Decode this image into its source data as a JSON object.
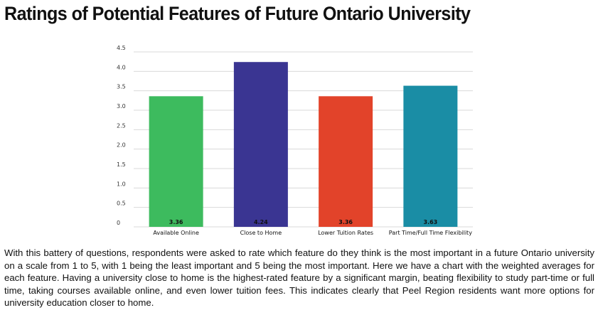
{
  "title": "Ratings of Potential Features of Future Ontario University",
  "description": "With this battery of questions, respondents were asked to rate which feature do they think is the most important in a future Ontario university on a scale from 1 to 5, with 1 being the least important and 5 being the most important. Here we have a chart with the weighted averages for each feature. Having a university close to home is the highest-rated feature by a significant margin, beating flexibility to study part-time or full time, taking courses available online, and even lower tuition fees. This indicates clearly that Peel Region residents want more options for university education closer to home.",
  "chart_data": {
    "type": "bar",
    "title": "",
    "xlabel": "",
    "ylabel": "",
    "categories": [
      "Available Online",
      "Close to Home",
      "Lower Tuition Rates",
      "Part Time/Full Time Flexibility"
    ],
    "values": [
      3.36,
      4.24,
      3.36,
      3.63
    ],
    "value_labels": [
      "3.36",
      "4.24",
      "3.36",
      "3.63"
    ],
    "colors": [
      "#3dbb5e",
      "#3a3592",
      "#e2432a",
      "#1a8da5"
    ],
    "ylim": [
      0,
      4.5
    ],
    "yticks": [
      {
        "value": 0,
        "label": "0"
      },
      {
        "value": 0.5,
        "label": "0.5"
      },
      {
        "value": 1,
        "label": "1.0"
      },
      {
        "value": 1.5,
        "label": "1.5"
      },
      {
        "value": 2,
        "label": "2.0"
      },
      {
        "value": 2.5,
        "label": "2.5"
      },
      {
        "value": 3,
        "label": "3.0"
      },
      {
        "value": 3.5,
        "label": "3.5"
      },
      {
        "value": 4,
        "label": "4.0"
      },
      {
        "value": 4.5,
        "label": "4.5"
      }
    ],
    "grid": true,
    "gridColor": "#d9d9d9"
  }
}
